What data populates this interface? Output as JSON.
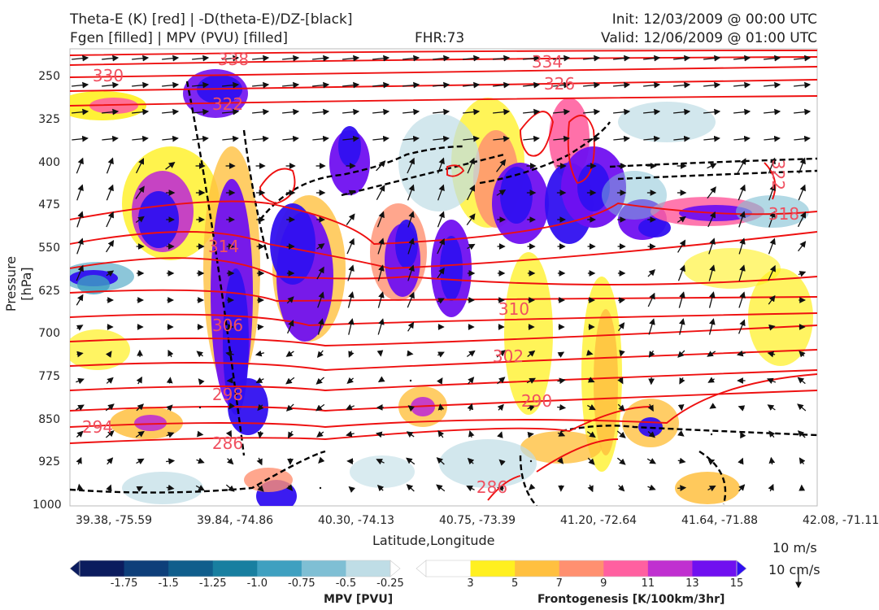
{
  "header": {
    "title_left_1": "Theta-E (K) [red] | -D(theta-E)/DZ-[black]",
    "title_left_2": "Fgen [filled] | MPV (PVU) [filled]",
    "fhr": "FHR:73",
    "init": "Init: 12/03/2009 @ 00:00 UTC",
    "valid": "Valid: 12/06/2009 @ 01:00 UTC"
  },
  "chart_data": {
    "type": "cross-section",
    "xlabel": "Latitude,Longitude",
    "ylabel": "Pressure [hPa]",
    "x_ticks": [
      "39.38, -75.59",
      "39.84, -74.86",
      "40.30, -74.13",
      "40.75, -73.39",
      "41.20, -72.64",
      "41.64, -71.88",
      "42.08, -71.11"
    ],
    "y_ticks": [
      250,
      325,
      400,
      475,
      550,
      625,
      700,
      775,
      850,
      925,
      1000
    ],
    "ylim": [
      1000,
      200
    ],
    "theta_e_contour_labels": [
      338,
      334,
      330,
      326,
      322,
      318,
      314,
      310,
      306,
      302,
      298,
      294,
      290,
      286
    ],
    "mpv_colorbar": {
      "label": "MPV [PVU]",
      "ticks": [
        "-1.75",
        "-1.5",
        "-1.25",
        "-1.0",
        "-0.75",
        "-0.5",
        "-0.25"
      ],
      "colors": [
        "#0b1c5e",
        "#0e3f7a",
        "#105e8c",
        "#187fa0",
        "#3fa0c0",
        "#7fbfd4",
        "#bfdde6",
        "#ffffff"
      ]
    },
    "fgen_colorbar": {
      "label": "Frontogenesis [K/100km/3hr]",
      "ticks": [
        "3",
        "5",
        "7",
        "9",
        "11",
        "13",
        "15"
      ],
      "colors": [
        "#ffffff",
        "#fff020",
        "#ffc040",
        "#ff9070",
        "#ff60a0",
        "#c030d0",
        "#7010f0",
        "#3010f0"
      ]
    },
    "vector_reference": {
      "horizontal": "10 m/s",
      "vertical": "10 cm/s"
    }
  }
}
